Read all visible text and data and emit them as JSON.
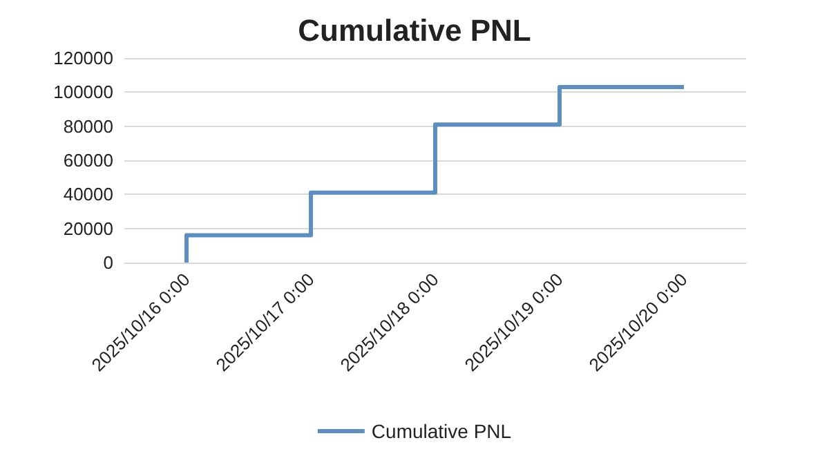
{
  "chart_data": {
    "type": "step",
    "title": "Cumulative PNL",
    "categories": [
      "2025/10/16 0:00",
      "2025/10/17 0:00",
      "2025/10/18 0:00",
      "2025/10/19 0:00",
      "2025/10/20 0:00"
    ],
    "series": [
      {
        "name": "Cumulative PNL",
        "color": "#5b8fc4",
        "values": [
          0,
          16000,
          41000,
          81000,
          103000
        ]
      }
    ],
    "ylim": [
      0,
      120000
    ],
    "yticks": [
      0,
      20000,
      40000,
      60000,
      80000,
      100000,
      120000
    ],
    "grid": "y",
    "legend": "bottom",
    "marker": "none"
  }
}
